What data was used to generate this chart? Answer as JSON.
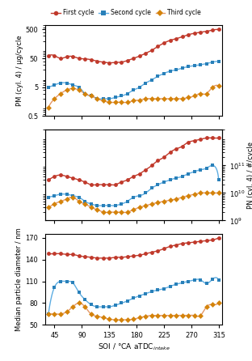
{
  "x": [
    35,
    45,
    55,
    65,
    75,
    85,
    95,
    105,
    115,
    125,
    135,
    145,
    155,
    165,
    175,
    185,
    195,
    205,
    215,
    225,
    235,
    245,
    255,
    265,
    275,
    285,
    295,
    305,
    315
  ],
  "pm_first": [
    60,
    62,
    50,
    57,
    58,
    50,
    48,
    45,
    40,
    37,
    35,
    36,
    37,
    42,
    50,
    60,
    75,
    95,
    130,
    170,
    210,
    240,
    280,
    330,
    370,
    400,
    430,
    480,
    500
  ],
  "pm_second": [
    5,
    6,
    7,
    7,
    6,
    5,
    3,
    2.5,
    2,
    2,
    2,
    2.2,
    2.5,
    3,
    4,
    5,
    7,
    9,
    12,
    15,
    18,
    20,
    23,
    26,
    28,
    30,
    33,
    37,
    40
  ],
  "pm_third": [
    1,
    2,
    3,
    4,
    4.5,
    4,
    3,
    2.5,
    2,
    1.7,
    1.5,
    1.5,
    1.5,
    1.5,
    1.7,
    1.8,
    2,
    2,
    2,
    2,
    2,
    2,
    2,
    2.2,
    2.5,
    3,
    3,
    5,
    5.5
  ],
  "pn_first": [
    30000000000.0,
    40000000000.0,
    45000000000.0,
    40000000000.0,
    35000000000.0,
    30000000000.0,
    25000000000.0,
    20000000000.0,
    20000000000.0,
    20000000000.0,
    20000000000.0,
    20000000000.0,
    25000000000.0,
    30000000000.0,
    40000000000.0,
    50000000000.0,
    70000000000.0,
    100000000000.0,
    150000000000.0,
    200000000000.0,
    300000000000.0,
    400000000000.0,
    500000000000.0,
    700000000000.0,
    800000000000.0,
    900000000000.0,
    1000000000000.0,
    1000000000000.0,
    1000000000000.0
  ],
  "pn_second": [
    7000000000.0,
    8000000000.0,
    9000000000.0,
    9000000000.0,
    8000000000.0,
    7000000000.0,
    5000000000.0,
    4000000000.0,
    3500000000.0,
    3500000000.0,
    3500000000.0,
    3500000000.0,
    4000000000.0,
    5000000000.0,
    7000000000.0,
    8000000000.0,
    10000000000.0,
    15000000000.0,
    20000000000.0,
    25000000000.0,
    30000000000.0,
    35000000000.0,
    40000000000.0,
    50000000000.0,
    60000000000.0,
    70000000000.0,
    80000000000.0,
    100000000000.0,
    30000000000.0
  ],
  "pn_third": [
    3000000000.0,
    4000000000.0,
    5000000000.0,
    6000000000.0,
    7000000000.0,
    5000000000.0,
    4000000000.0,
    3000000000.0,
    2500000000.0,
    2000000000.0,
    2000000000.0,
    2000000000.0,
    2000000000.0,
    2000000000.0,
    2500000000.0,
    3000000000.0,
    3500000000.0,
    4000000000.0,
    4500000000.0,
    5000000000.0,
    5500000000.0,
    6000000000.0,
    7000000000.0,
    8000000000.0,
    9000000000.0,
    10000000000.0,
    10000000000.0,
    10000000000.0,
    10000000000.0
  ],
  "mpd_first": [
    148,
    148,
    148,
    147,
    147,
    145,
    144,
    143,
    142,
    142,
    142,
    143,
    143,
    144,
    145,
    146,
    148,
    150,
    152,
    155,
    158,
    160,
    162,
    163,
    164,
    165,
    166,
    167,
    170
  ],
  "mpd_second": [
    65,
    102,
    110,
    110,
    108,
    95,
    85,
    78,
    75,
    75,
    75,
    77,
    80,
    83,
    87,
    90,
    93,
    96,
    98,
    100,
    103,
    106,
    108,
    110,
    112,
    112,
    107,
    113,
    112
  ],
  "mpd_third": [
    65,
    65,
    65,
    68,
    75,
    80,
    75,
    65,
    62,
    60,
    58,
    57,
    57,
    57,
    58,
    60,
    62,
    63,
    63,
    63,
    63,
    63,
    63,
    63,
    63,
    63,
    75,
    78,
    80
  ],
  "color_first": "#c0392b",
  "color_second": "#2980b9",
  "color_third": "#d4830a",
  "line_color_first": "#c0392b",
  "line_color_second": "#5dade2",
  "line_color_third": "#e59866",
  "xticks": [
    45,
    90,
    135,
    180,
    225,
    270,
    315
  ],
  "xlabel": "SOI / °CA aTDC$_{intake}$",
  "ylabel_pm": "PM (cyl. 4) / μg/cycle",
  "ylabel_pn": "PN (cyl. 4) / #/cycle",
  "ylabel_mpd": "Median particle diameter / nm",
  "pm_ylim": [
    0.5,
    700
  ],
  "pn_ylim": [
    1000000000.0,
    2000000000000.0
  ],
  "mpd_ylim": [
    50,
    175
  ],
  "mpd_yticks": [
    50,
    80,
    110,
    140,
    170
  ]
}
